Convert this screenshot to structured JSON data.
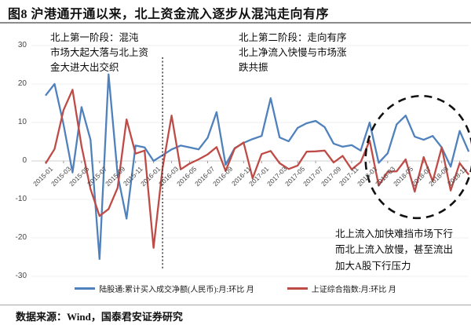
{
  "title": "图8 沪港通开通以来，北上资金流入逐步从混沌走向有序",
  "source": "数据来源：Wind，国泰君安证券研究",
  "annotations": {
    "phase1": "北上第一阶段：混沌\n市场大起大落与北上资\n金大进大出交织",
    "phase2": "北上第二阶段：走向有序\n北上净流入快慢与市场涨\n跌共振",
    "note": "北上流入加快难挡市场下行\n而北上流入放慢，甚至流出\n加大A股下行压力"
  },
  "colors": {
    "northbound_line": "#4f81bd",
    "index_line": "#bf4b47",
    "axis_text": "#454545",
    "divider": "#2b2b2b"
  },
  "chart_data": {
    "type": "line",
    "x": [
      "2015-01",
      "2015-02",
      "2015-03",
      "2015-04",
      "2015-05",
      "2015-06",
      "2015-07",
      "2015-08",
      "2015-09",
      "2015-10",
      "2015-11",
      "2015-12",
      "2016-01",
      "2016-02",
      "2016-03",
      "2016-04",
      "2016-05",
      "2016-06",
      "2016-07",
      "2016-08",
      "2016-09",
      "2016-10",
      "2016-11",
      "2016-12",
      "2017-01",
      "2017-02",
      "2017-03",
      "2017-04",
      "2017-05",
      "2017-06",
      "2017-07",
      "2017-08",
      "2017-09",
      "2017-10",
      "2017-11",
      "2017-12",
      "2018-01",
      "2018-02",
      "2018-03",
      "2018-04",
      "2018-05",
      "2018-06",
      "2018-07",
      "2018-08",
      "2018-09",
      "2018-10",
      "2018-11",
      "2018-12"
    ],
    "x_tick_labels": [
      "2015-01",
      "2015-03",
      "2015-05",
      "2015-07",
      "2015-09",
      "2015-11",
      "2016-01",
      "2016-03",
      "2016-05",
      "2016-07",
      "2016-09",
      "2016-11",
      "2017-01",
      "2017-03",
      "2017-05",
      "2017-07",
      "2017-09",
      "2017-11",
      "2018-01",
      "2018-03",
      "2018-05",
      "2018-07",
      "2018-09",
      "2018-11"
    ],
    "x_tick_every": 2,
    "series": [
      {
        "name": "陆股通:累计买入成交净额(人民币):月:环比 月",
        "color": "#4f81bd",
        "values": [
          17,
          20,
          9.5,
          -3,
          14,
          5.5,
          -25.5,
          22.5,
          -3.5,
          -15,
          4,
          3.5,
          0,
          1.5,
          3,
          4,
          3.5,
          3,
          6,
          12.7,
          -1,
          3.3,
          4.7,
          5.7,
          6.5,
          16.3,
          6.1,
          5.1,
          8.6,
          9.8,
          10.4,
          8.8,
          4.5,
          3.7,
          4.1,
          2.7,
          10,
          -0.5,
          2,
          9.5,
          11.8,
          6.3,
          5.5,
          6.5,
          3.5,
          -1.5,
          7.8,
          2.4
        ]
      },
      {
        "name": "上证综合指数:月:环比 月",
        "color": "#bf4b47",
        "values": [
          -0.7,
          3.1,
          13.2,
          18.5,
          3.8,
          -7.3,
          -14.3,
          -12.5,
          -7,
          10.8,
          1.9,
          2.7,
          -22.6,
          -1.8,
          11.8,
          -2.2,
          -0.7,
          0.4,
          1.7,
          3.6,
          -2.6,
          3.2,
          4.8,
          -4.5,
          1.8,
          2.6,
          -0.6,
          -2.1,
          -1.2,
          2.4,
          2.5,
          2.7,
          -0.4,
          1.3,
          -2.2,
          -0.3,
          5.3,
          -6.4,
          -2.8,
          -2.7,
          0.4,
          -8,
          1,
          -5.3,
          3.5,
          -7.7,
          -0.6,
          -3.6
        ]
      }
    ],
    "ylim": [
      -30,
      30
    ],
    "yticks": [
      30,
      20,
      10,
      0,
      -10,
      -20,
      -30
    ],
    "grid": true,
    "legend_position": "bottom",
    "phase_divider_x": "2016-02",
    "highlight_ellipse": {
      "from": "2018-01",
      "to": "2018-12"
    }
  }
}
